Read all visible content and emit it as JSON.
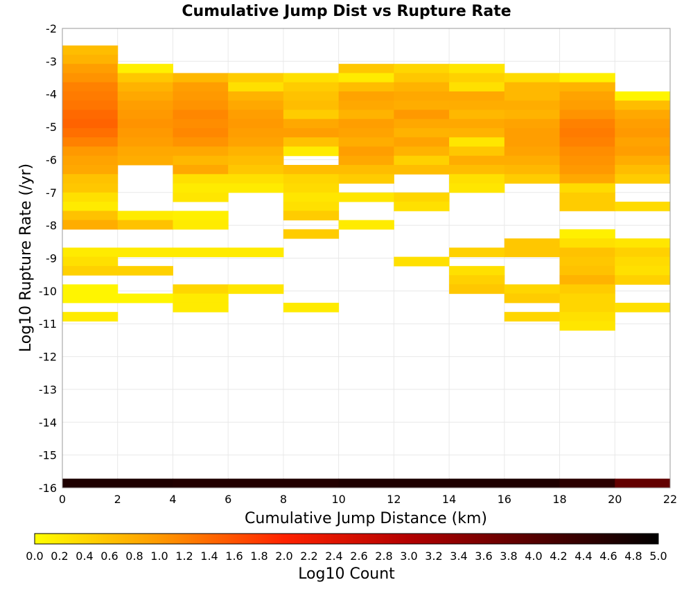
{
  "chart_data": {
    "type": "heatmap",
    "title": "Cumulative Jump Dist vs Rupture Rate",
    "xlabel": "Cumulative Jump Distance (km)",
    "ylabel": "Log10 Rupture Rate (/yr)",
    "xlim": [
      0,
      22
    ],
    "ylim": [
      -16,
      -2
    ],
    "x_ticks": [
      "0",
      "2",
      "4",
      "6",
      "8",
      "10",
      "12",
      "14",
      "16",
      "18",
      "20",
      "22"
    ],
    "y_ticks": [
      "-2",
      "-3",
      "-4",
      "-5",
      "-6",
      "-7",
      "-8",
      "-9",
      "-10",
      "-11",
      "-12",
      "-13",
      "-14",
      "-15",
      "-16"
    ],
    "x_bin_width": 2,
    "y_bin_height": 0.28,
    "grid": true,
    "colorbar": {
      "label": "Log10 Count",
      "min": 0.0,
      "max": 5.0,
      "ticks": [
        "0.0",
        "0.2",
        "0.4",
        "0.6",
        "0.8",
        "1.0",
        "1.2",
        "1.4",
        "1.6",
        "1.8",
        "2.0",
        "2.2",
        "2.4",
        "2.6",
        "2.8",
        "3.0",
        "3.2",
        "3.4",
        "3.6",
        "3.8",
        "4.0",
        "4.2",
        "4.4",
        "4.6",
        "4.8",
        "5.0"
      ],
      "colormap": [
        "#ffff00",
        "#ff9900",
        "#ff2200",
        "#b30000",
        "#550000",
        "#000000"
      ]
    },
    "columns": [
      {
        "x_start": 0,
        "cells": [
          [
            -2.8,
            0.65
          ],
          [
            -3.08,
            0.75
          ],
          [
            -3.36,
            0.95
          ],
          [
            -3.64,
            1.05
          ],
          [
            -3.92,
            1.2
          ],
          [
            -4.2,
            1.25
          ],
          [
            -4.48,
            1.3
          ],
          [
            -4.76,
            1.4
          ],
          [
            -5.04,
            1.45
          ],
          [
            -5.32,
            1.35
          ],
          [
            -5.6,
            1.2
          ],
          [
            -5.88,
            1.0
          ],
          [
            -6.16,
            0.9
          ],
          [
            -6.44,
            0.85
          ],
          [
            -6.72,
            0.6
          ],
          [
            -7.0,
            0.55
          ],
          [
            -7.28,
            0.3
          ],
          [
            -7.56,
            0.2
          ],
          [
            -7.84,
            0.6
          ],
          [
            -8.12,
            0.8
          ],
          [
            -8.96,
            0.2
          ],
          [
            -9.24,
            0.3
          ],
          [
            -9.52,
            0.45
          ],
          [
            -10.08,
            0.1
          ],
          [
            -10.36,
            0.1
          ],
          [
            -10.92,
            0.2
          ],
          [
            -16.0,
            4.65
          ]
        ]
      },
      {
        "x_start": 2,
        "cells": [
          [
            -3.36,
            0.15
          ],
          [
            -3.64,
            0.55
          ],
          [
            -3.92,
            0.75
          ],
          [
            -4.2,
            0.85
          ],
          [
            -4.48,
            0.95
          ],
          [
            -4.76,
            1.0
          ],
          [
            -5.04,
            1.05
          ],
          [
            -5.32,
            1.0
          ],
          [
            -5.6,
            0.95
          ],
          [
            -5.88,
            0.85
          ],
          [
            -6.16,
            0.8
          ],
          [
            -7.84,
            0.2
          ],
          [
            -8.12,
            0.6
          ],
          [
            -8.96,
            0.2
          ],
          [
            -9.52,
            0.45
          ],
          [
            -10.36,
            0.1
          ],
          [
            -16.0,
            4.65
          ]
        ]
      },
      {
        "x_start": 4,
        "cells": [
          [
            -3.64,
            0.7
          ],
          [
            -3.92,
            0.95
          ],
          [
            -4.2,
            1.0
          ],
          [
            -4.48,
            1.05
          ],
          [
            -4.76,
            1.15
          ],
          [
            -5.04,
            1.1
          ],
          [
            -5.32,
            1.15
          ],
          [
            -5.6,
            1.05
          ],
          [
            -5.88,
            0.85
          ],
          [
            -6.16,
            0.7
          ],
          [
            -6.44,
            0.85
          ],
          [
            -6.72,
            0.3
          ],
          [
            -7.0,
            0.2
          ],
          [
            -7.28,
            0.25
          ],
          [
            -7.84,
            0.15
          ],
          [
            -8.12,
            0.2
          ],
          [
            -8.96,
            0.2
          ],
          [
            -10.08,
            0.4
          ],
          [
            -10.36,
            0.2
          ],
          [
            -10.64,
            0.2
          ],
          [
            -16.0,
            4.6
          ]
        ]
      },
      {
        "x_start": 6,
        "cells": [
          [
            -3.64,
            0.5
          ],
          [
            -3.92,
            0.3
          ],
          [
            -4.2,
            0.75
          ],
          [
            -4.48,
            0.85
          ],
          [
            -4.76,
            0.95
          ],
          [
            -5.04,
            1.0
          ],
          [
            -5.32,
            0.95
          ],
          [
            -5.6,
            0.9
          ],
          [
            -5.88,
            0.75
          ],
          [
            -6.16,
            0.65
          ],
          [
            -6.44,
            0.55
          ],
          [
            -6.72,
            0.3
          ],
          [
            -7.0,
            0.2
          ],
          [
            -8.96,
            0.2
          ],
          [
            -10.08,
            0.25
          ],
          [
            -16.0,
            4.6
          ]
        ]
      },
      {
        "x_start": 8,
        "cells": [
          [
            -3.64,
            0.3
          ],
          [
            -3.92,
            0.5
          ],
          [
            -4.2,
            0.6
          ],
          [
            -4.48,
            0.65
          ],
          [
            -4.76,
            0.5
          ],
          [
            -5.04,
            0.85
          ],
          [
            -5.32,
            0.95
          ],
          [
            -5.6,
            0.6
          ],
          [
            -5.88,
            0.2
          ],
          [
            -6.44,
            0.65
          ],
          [
            -6.72,
            0.4
          ],
          [
            -7.0,
            0.35
          ],
          [
            -7.28,
            0.25
          ],
          [
            -7.56,
            0.3
          ],
          [
            -7.84,
            0.5
          ],
          [
            -8.4,
            0.5
          ],
          [
            -10.64,
            0.2
          ],
          [
            -16.0,
            4.6
          ]
        ]
      },
      {
        "x_start": 10,
        "cells": [
          [
            -3.36,
            0.55
          ],
          [
            -3.64,
            0.2
          ],
          [
            -3.92,
            0.65
          ],
          [
            -4.2,
            0.9
          ],
          [
            -4.48,
            0.85
          ],
          [
            -4.76,
            0.75
          ],
          [
            -5.04,
            0.95
          ],
          [
            -5.32,
            0.9
          ],
          [
            -5.6,
            0.8
          ],
          [
            -5.88,
            0.95
          ],
          [
            -6.16,
            0.85
          ],
          [
            -6.44,
            0.65
          ],
          [
            -6.72,
            0.5
          ],
          [
            -7.28,
            0.25
          ],
          [
            -8.12,
            0.2
          ],
          [
            -16.0,
            4.65
          ]
        ]
      },
      {
        "x_start": 12,
        "cells": [
          [
            -3.36,
            0.4
          ],
          [
            -3.64,
            0.55
          ],
          [
            -3.92,
            0.75
          ],
          [
            -4.2,
            0.85
          ],
          [
            -4.48,
            0.8
          ],
          [
            -4.76,
            1.0
          ],
          [
            -5.04,
            0.85
          ],
          [
            -5.32,
            0.75
          ],
          [
            -5.6,
            0.9
          ],
          [
            -5.88,
            0.75
          ],
          [
            -6.16,
            0.45
          ],
          [
            -6.44,
            0.65
          ],
          [
            -7.28,
            0.4
          ],
          [
            -7.56,
            0.3
          ],
          [
            -9.24,
            0.3
          ],
          [
            -16.0,
            4.65
          ]
        ]
      },
      {
        "x_start": 14,
        "cells": [
          [
            -3.36,
            0.25
          ],
          [
            -3.64,
            0.45
          ],
          [
            -3.92,
            0.3
          ],
          [
            -4.2,
            0.85
          ],
          [
            -4.48,
            0.8
          ],
          [
            -4.76,
            0.7
          ],
          [
            -5.04,
            0.85
          ],
          [
            -5.32,
            0.75
          ],
          [
            -5.6,
            0.25
          ],
          [
            -5.88,
            0.55
          ],
          [
            -6.16,
            0.8
          ],
          [
            -6.44,
            0.65
          ],
          [
            -6.72,
            0.3
          ],
          [
            -7.0,
            0.25
          ],
          [
            -8.96,
            0.45
          ],
          [
            -9.52,
            0.3
          ],
          [
            -9.8,
            0.45
          ],
          [
            -10.08,
            0.55
          ],
          [
            -16.0,
            4.65
          ]
        ]
      },
      {
        "x_start": 16,
        "cells": [
          [
            -3.64,
            0.35
          ],
          [
            -3.92,
            0.7
          ],
          [
            -4.2,
            0.7
          ],
          [
            -4.48,
            0.8
          ],
          [
            -4.76,
            0.75
          ],
          [
            -5.04,
            0.9
          ],
          [
            -5.32,
            0.95
          ],
          [
            -5.6,
            0.95
          ],
          [
            -5.88,
            0.9
          ],
          [
            -6.16,
            0.8
          ],
          [
            -6.44,
            0.7
          ],
          [
            -6.72,
            0.5
          ],
          [
            -8.68,
            0.55
          ],
          [
            -8.96,
            0.55
          ],
          [
            -10.08,
            0.4
          ],
          [
            -10.36,
            0.5
          ],
          [
            -10.92,
            0.4
          ],
          [
            -16.0,
            4.65
          ]
        ]
      },
      {
        "x_start": 18,
        "cells": [
          [
            -3.64,
            0.15
          ],
          [
            -3.92,
            0.75
          ],
          [
            -4.2,
            0.9
          ],
          [
            -4.48,
            0.95
          ],
          [
            -4.76,
            1.05
          ],
          [
            -5.04,
            1.2
          ],
          [
            -5.32,
            1.25
          ],
          [
            -5.6,
            1.2
          ],
          [
            -5.88,
            1.1
          ],
          [
            -6.16,
            1.05
          ],
          [
            -6.44,
            1.0
          ],
          [
            -6.72,
            0.85
          ],
          [
            -7.0,
            0.35
          ],
          [
            -7.28,
            0.5
          ],
          [
            -7.56,
            0.5
          ],
          [
            -8.4,
            0.15
          ],
          [
            -8.68,
            0.3
          ],
          [
            -8.96,
            0.6
          ],
          [
            -9.24,
            0.55
          ],
          [
            -9.52,
            0.6
          ],
          [
            -9.8,
            0.75
          ],
          [
            -10.08,
            0.5
          ],
          [
            -10.36,
            0.4
          ],
          [
            -10.64,
            0.4
          ],
          [
            -10.92,
            0.3
          ],
          [
            -11.2,
            0.25
          ],
          [
            -16.0,
            4.5
          ]
        ]
      },
      {
        "x_start": 20,
        "cells": [
          [
            -4.2,
            0.1
          ],
          [
            -4.48,
            0.65
          ],
          [
            -4.76,
            0.85
          ],
          [
            -5.04,
            0.95
          ],
          [
            -5.32,
            1.0
          ],
          [
            -5.6,
            0.9
          ],
          [
            -5.88,
            0.95
          ],
          [
            -6.16,
            0.8
          ],
          [
            -6.44,
            0.65
          ],
          [
            -6.72,
            0.5
          ],
          [
            -7.56,
            0.35
          ],
          [
            -8.68,
            0.25
          ],
          [
            -8.96,
            0.45
          ],
          [
            -9.24,
            0.35
          ],
          [
            -9.52,
            0.3
          ],
          [
            -9.8,
            0.45
          ],
          [
            -10.64,
            0.3
          ],
          [
            -16.0,
            3.85
          ]
        ]
      }
    ]
  }
}
